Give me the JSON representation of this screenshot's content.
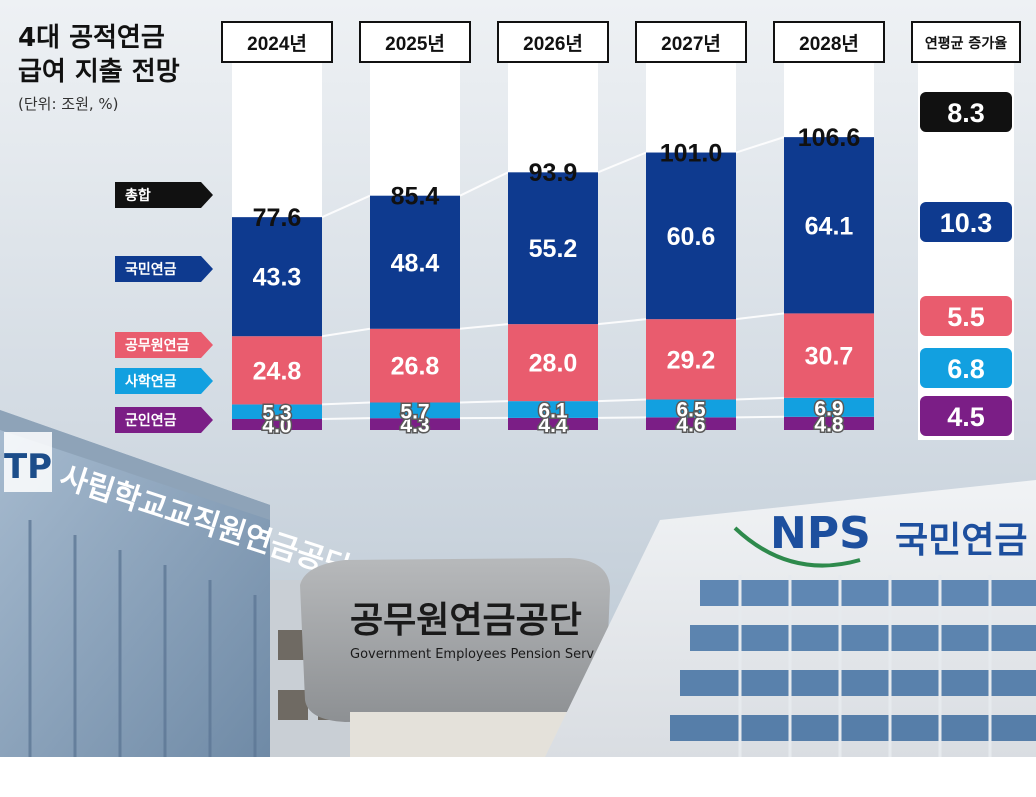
{
  "title_line1": "4대 공적연금",
  "title_line2": "급여 지출 전망",
  "unit_note": "(단위: 조원, %)",
  "cagr_header": "연평균 증가율",
  "colors": {
    "national": "#0e3a8f",
    "civil": "#e95c6e",
    "private_school": "#12a0e0",
    "military": "#7b1e86",
    "total_label": "#111111",
    "column_bg": "#ffffff"
  },
  "chart_data": {
    "type": "bar",
    "stacked": true,
    "categories": [
      "2024년",
      "2025년",
      "2026년",
      "2027년",
      "2028년"
    ],
    "series": [
      {
        "name": "국민연금",
        "key": "national",
        "values": [
          43.3,
          48.4,
          55.2,
          60.6,
          64.1
        ],
        "labels": [
          "43.3",
          "48.4",
          "55.2",
          "60.6",
          "64.1"
        ],
        "cagr": "10.3"
      },
      {
        "name": "공무원연금",
        "key": "civil",
        "values": [
          24.8,
          26.8,
          28.0,
          29.2,
          30.7
        ],
        "labels": [
          "24.8",
          "26.8",
          "28.0",
          "29.2",
          "30.7"
        ],
        "cagr": "5.5"
      },
      {
        "name": "사학연금",
        "key": "private_school",
        "values": [
          5.3,
          5.7,
          6.1,
          6.5,
          6.9
        ],
        "labels": [
          "5.3",
          "5.7",
          "6.1",
          "6.5",
          "6.9"
        ],
        "cagr": "6.8"
      },
      {
        "name": "군인연금",
        "key": "military",
        "values": [
          4.0,
          4.3,
          4.4,
          4.6,
          4.8
        ],
        "labels": [
          "4.0",
          "4.3",
          "4.4",
          "4.6",
          "4.8"
        ],
        "cagr": "4.5"
      }
    ],
    "total": {
      "name": "총합",
      "values": [
        77.6,
        85.4,
        93.9,
        101.0,
        106.6
      ],
      "labels": [
        "77.6",
        "85.4",
        "93.9",
        "101.0",
        "106.6"
      ],
      "cagr": "8.3"
    },
    "xlabel": "",
    "ylabel": "",
    "grid": false,
    "legend": "left"
  },
  "background": {
    "sign_private_school": "사립학교교직원연금공단",
    "sign_private_logo": "TP",
    "sign_civil": "공무원연금공단",
    "sign_civil_en": "Government Employees Pension Serv",
    "sign_nps_logo": "NPS",
    "sign_nps": "국민연금"
  }
}
